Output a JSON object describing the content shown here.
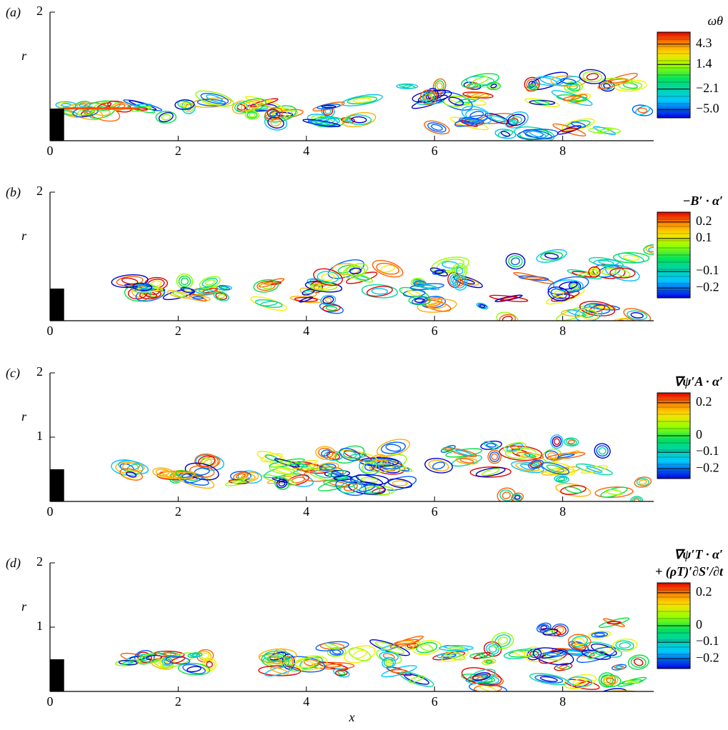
{
  "chart_data": [
    {
      "type": "contour",
      "label": "(a)",
      "ylabel": "r",
      "xlim": [
        0,
        9.42
      ],
      "ylim": [
        0,
        2
      ],
      "xticks": [
        0,
        2,
        4,
        6,
        8
      ],
      "yticks": [
        2
      ],
      "colorbar": {
        "title": [
          "ωθ"
        ],
        "lim": [
          -6.2,
          6.0
        ],
        "ticks": [
          4.3,
          1.4,
          {
            "value": -2.1,
            "label": "−2.1"
          },
          {
            "value": -5.0,
            "label": "−5.0"
          }
        ]
      }
    },
    {
      "type": "contour",
      "label": "(b)",
      "ylabel": "r",
      "xlim": [
        0,
        9.42
      ],
      "ylim": [
        0,
        2
      ],
      "xticks": [
        0,
        2,
        4,
        6,
        8
      ],
      "yticks": [
        2
      ],
      "colorbar": {
        "title": [
          "−B′ · α′"
        ],
        "lim": [
          -0.26,
          0.26
        ],
        "ticks": [
          0.2,
          0.1,
          {
            "value": -0.1,
            "label": "−0.1"
          },
          {
            "value": -0.2,
            "label": "−0.2"
          }
        ]
      }
    },
    {
      "type": "contour",
      "label": "(c)",
      "ylabel": "r",
      "xlim": [
        0,
        9.42
      ],
      "ylim": [
        0,
        2
      ],
      "xticks": [
        0,
        2,
        4,
        6,
        8
      ],
      "yticks": [
        1,
        2
      ],
      "colorbar": {
        "title": [
          "∇ψ′A · α′"
        ],
        "lim": [
          -0.26,
          0.26
        ],
        "ticks": [
          0.2,
          0,
          {
            "value": -0.1,
            "label": "−0.1"
          },
          {
            "value": -0.2,
            "label": "−0.2"
          }
        ]
      }
    },
    {
      "type": "contour",
      "label": "(d)",
      "ylabel": "r",
      "xlabel": "x",
      "xlim": [
        0,
        9.42
      ],
      "ylim": [
        0,
        2
      ],
      "xticks": [
        0,
        2,
        4,
        6,
        8
      ],
      "yticks": [
        1,
        2
      ],
      "colorbar": {
        "title": [
          "∇ψ′T · α′",
          "+ (ρT)′∂S′/∂t"
        ],
        "lim": [
          -0.26,
          0.26
        ],
        "ticks": [
          0.2,
          0,
          {
            "value": -0.1,
            "label": "−0.1"
          },
          {
            "value": -0.2,
            "label": "−0.2"
          }
        ]
      }
    }
  ]
}
